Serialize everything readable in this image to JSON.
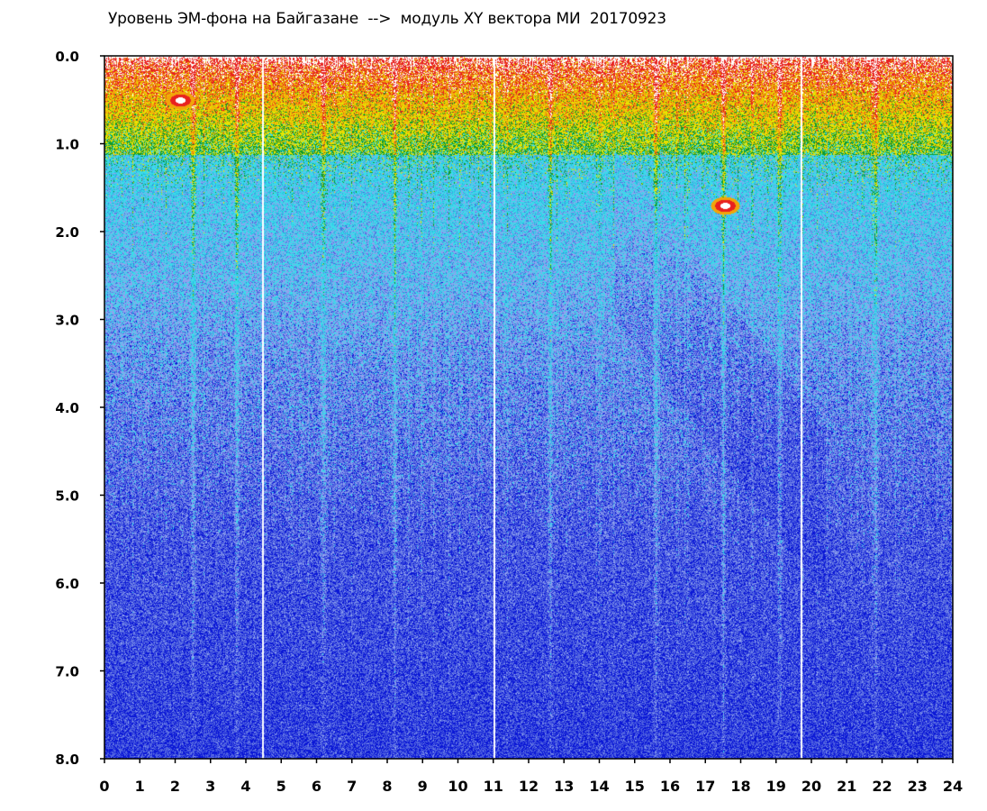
{
  "chart_data": {
    "type": "heatmap",
    "title": "Уровень ЭМ-фона на Байгазане  -->  модуль XY вектора МИ  20170923",
    "xlabel": "",
    "ylabel": "",
    "xlim": [
      0,
      24
    ],
    "ylim": [
      8.0,
      0.0
    ],
    "y_axis_inverted": true,
    "x_ticks": [
      "0",
      "1",
      "2",
      "3",
      "4",
      "5",
      "6",
      "7",
      "8",
      "9",
      "10",
      "11",
      "12",
      "13",
      "14",
      "15",
      "16",
      "17",
      "18",
      "19",
      "20",
      "21",
      "22",
      "23",
      "24"
    ],
    "y_ticks": [
      "0.0",
      "1.0",
      "2.0",
      "3.0",
      "4.0",
      "5.0",
      "6.0",
      "7.0",
      "8.0"
    ],
    "grid": false,
    "legend": "none",
    "colormap": [
      "#0a17d6",
      "#5063e0",
      "#8fa2ef",
      "#39dcea",
      "#2bb5e0",
      "#0f9a2e",
      "#e6e600",
      "#f1a50a",
      "#e8211e",
      "#ffffff"
    ],
    "gap_lines_hours": [
      4.45,
      11.0,
      19.7
    ],
    "bright_stripes_hours": [
      2.5,
      3.75,
      6.2,
      8.2,
      12.6,
      15.6,
      17.5,
      19.1,
      21.8
    ],
    "hot_spots": [
      {
        "hour": 2.15,
        "y": 0.5
      },
      {
        "hour": 17.55,
        "y": 1.7
      }
    ]
  }
}
